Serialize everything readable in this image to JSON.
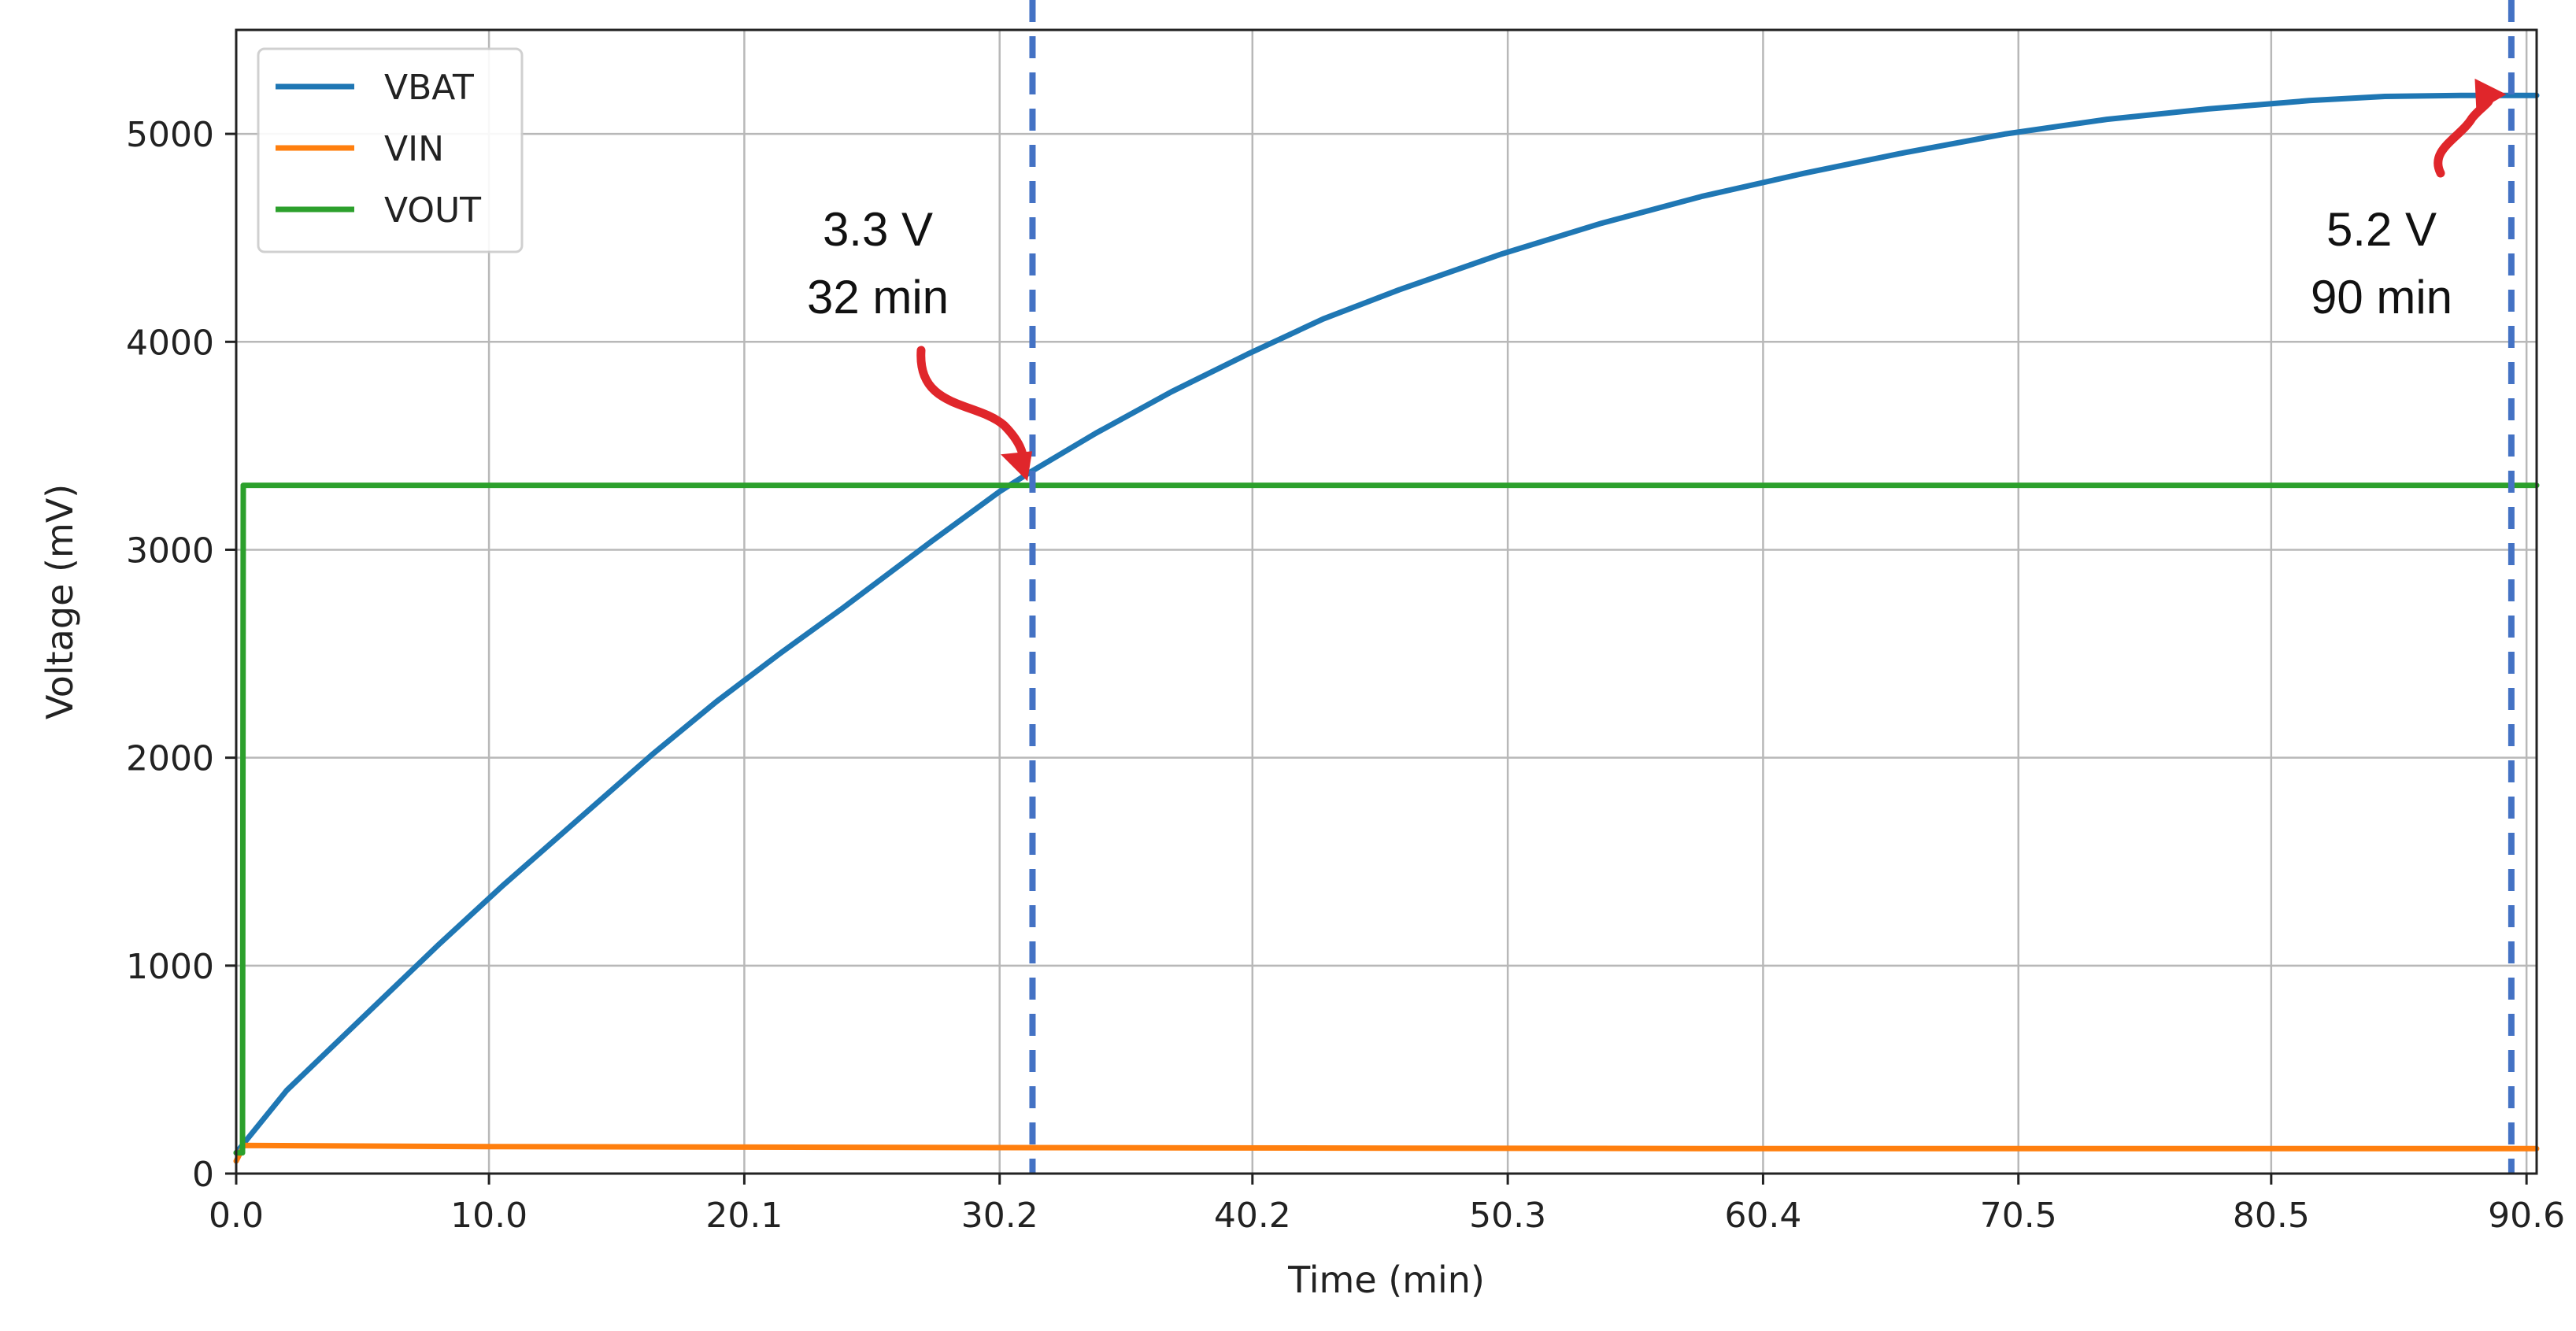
{
  "chart_data": {
    "type": "line",
    "xlabel": "Time (min)",
    "ylabel": "Voltage (mV)",
    "xlim": [
      0,
      91.0
    ],
    "ylim": [
      0,
      5500
    ],
    "xticks": [
      0.0,
      10.0,
      20.1,
      30.2,
      40.2,
      50.3,
      60.4,
      70.5,
      80.5,
      90.6
    ],
    "xtick_labels": [
      "0.0",
      "10.0",
      "20.1",
      "30.2",
      "40.2",
      "50.3",
      "60.4",
      "70.5",
      "80.5",
      "90.6"
    ],
    "yticks": [
      0,
      1000,
      2000,
      3000,
      4000,
      5000
    ],
    "ytick_labels": [
      "0",
      "1000",
      "2000",
      "3000",
      "4000",
      "5000"
    ],
    "grid": true,
    "legend_position": "top-left",
    "series": [
      {
        "name": "VBAT",
        "color": "#1f77b4",
        "x": [
          0.0,
          2.0,
          5.0,
          8.0,
          10.5,
          13.5,
          16.5,
          19.0,
          21.5,
          24.0,
          27.5,
          30.2,
          31.5,
          34.0,
          37.0,
          40.0,
          43.0,
          46.0,
          50.0,
          54.0,
          58.0,
          62.0,
          66.0,
          70.0,
          74.0,
          78.0,
          82.0,
          85.0,
          88.0,
          91.0
        ],
        "values": [
          100,
          400,
          750,
          1100,
          1380,
          1700,
          2020,
          2270,
          2500,
          2720,
          3040,
          3280,
          3380,
          3560,
          3760,
          3940,
          4110,
          4250,
          4420,
          4570,
          4700,
          4810,
          4910,
          5000,
          5070,
          5120,
          5160,
          5180,
          5185,
          5185
        ]
      },
      {
        "name": "VIN",
        "color": "#ff7f0e",
        "x": [
          0.0,
          0.3,
          10.0,
          30.0,
          60.0,
          91.0
        ],
        "values": [
          60,
          135,
          130,
          125,
          120,
          120
        ]
      },
      {
        "name": "VOUT",
        "color": "#2ca02c",
        "x": [
          0.0,
          0.25,
          0.28,
          91.0
        ],
        "values": [
          100,
          100,
          3310,
          3310
        ]
      }
    ],
    "vlines": [
      {
        "x": 31.5,
        "color": "#4472c4",
        "style": "dashed"
      },
      {
        "x": 90.0,
        "color": "#4472c4",
        "style": "dashed"
      }
    ],
    "annotations": [
      {
        "lines": [
          "3.3 V",
          "32 min"
        ],
        "target_x": 31.3,
        "target_y": 3330,
        "arrow_color": "#e0262b"
      },
      {
        "lines": [
          "5.2 V",
          "90 min"
        ],
        "target_x": 89.8,
        "target_y": 5190,
        "arrow_color": "#e0262b"
      }
    ]
  }
}
